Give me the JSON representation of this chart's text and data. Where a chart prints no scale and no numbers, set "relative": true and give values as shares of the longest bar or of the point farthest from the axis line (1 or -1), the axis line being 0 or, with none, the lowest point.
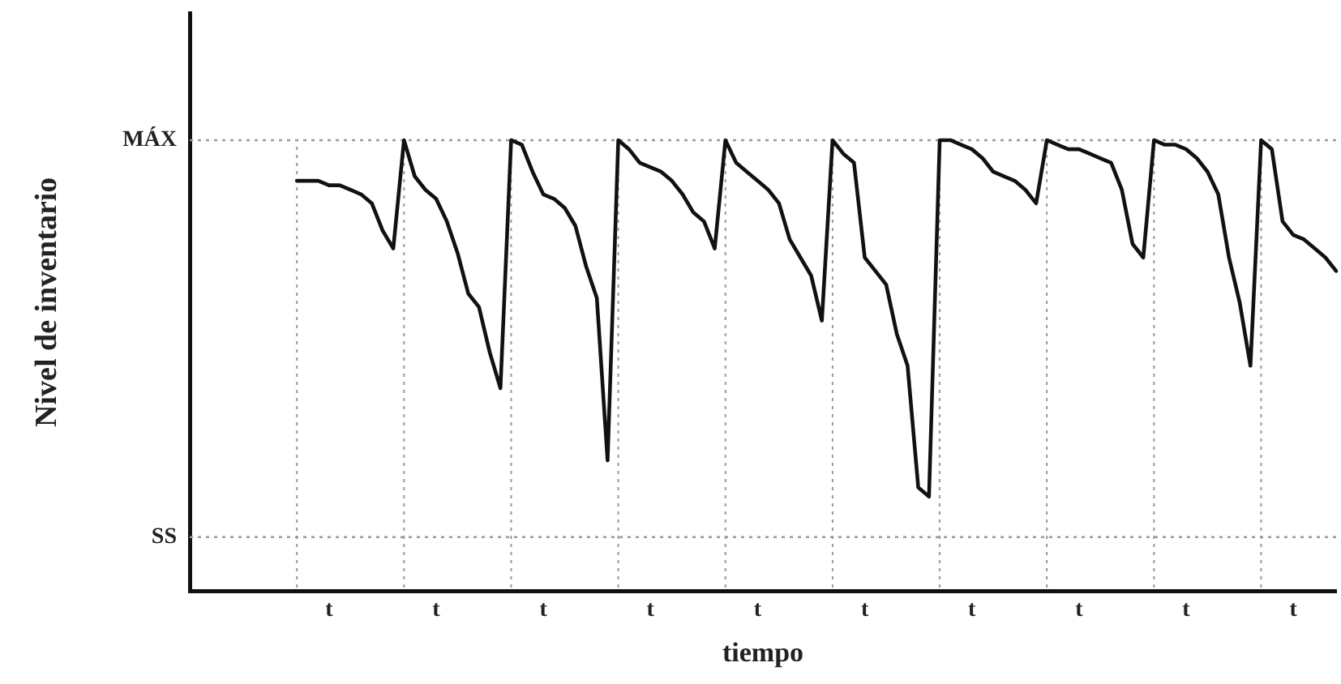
{
  "chart_data": {
    "type": "line",
    "relative": true,
    "xlabel": "tiempo",
    "ylabel": "Nivel de inventario",
    "legend": false,
    "grid": "x",
    "marker": "none",
    "line_style": "solid",
    "categories": [
      null,
      null,
      null,
      null,
      null,
      null,
      null,
      null,
      null,
      null,
      null,
      null,
      null,
      "t",
      null,
      null,
      null,
      null,
      null,
      null,
      null,
      null,
      null,
      "t",
      null,
      null,
      null,
      null,
      null,
      null,
      null,
      null,
      null,
      "t",
      null,
      null,
      null,
      null,
      null,
      null,
      null,
      null,
      null,
      "t",
      null,
      null,
      null,
      null,
      null,
      null,
      null,
      null,
      null,
      "t",
      null,
      null,
      null,
      null,
      null,
      null,
      null,
      null,
      null,
      "t",
      null,
      null,
      null,
      null,
      null,
      null,
      null,
      null,
      null,
      "t",
      null,
      null,
      null,
      null,
      null,
      null,
      null,
      null,
      null,
      "t",
      null,
      null,
      null,
      null,
      null,
      null,
      null,
      null,
      null,
      "t",
      null,
      null,
      null,
      null,
      null,
      null,
      null,
      null,
      null,
      "t",
      null,
      null,
      null,
      null
    ],
    "series": [
      {
        "color": "#111111",
        "values": [
          null,
          null,
          null,
          null,
          null,
          null,
          null,
          null,
          null,
          null,
          0.91,
          0.91,
          0.91,
          0.9,
          0.9,
          0.89,
          0.88,
          0.86,
          0.8,
          0.76,
          1.0,
          0.92,
          0.89,
          0.87,
          0.82,
          0.75,
          0.66,
          0.63,
          0.53,
          0.45,
          1.0,
          0.99,
          0.93,
          0.88,
          0.87,
          0.85,
          0.81,
          0.72,
          0.65,
          0.29,
          1.0,
          0.98,
          0.95,
          0.94,
          0.93,
          0.91,
          0.88,
          0.84,
          0.82,
          0.76,
          1.0,
          0.95,
          0.93,
          0.91,
          0.89,
          0.86,
          0.78,
          0.74,
          0.7,
          0.6,
          1.0,
          0.97,
          0.95,
          0.74,
          0.71,
          0.68,
          0.57,
          0.5,
          0.23,
          0.21,
          1.0,
          1.0,
          0.99,
          0.98,
          0.96,
          0.93,
          0.92,
          0.91,
          0.89,
          0.86,
          1.0,
          0.99,
          0.98,
          0.98,
          0.97,
          0.96,
          0.95,
          0.89,
          0.77,
          0.74,
          1.0,
          0.99,
          0.99,
          0.98,
          0.96,
          0.93,
          0.88,
          0.74,
          0.64,
          0.5,
          1.0,
          0.98,
          0.82,
          0.79,
          0.78,
          0.76,
          0.74,
          0.71
        ]
      }
    ],
    "ref_lines": [
      {
        "axis": "y",
        "value": 1.0,
        "label": "MÁX",
        "color": "#999999",
        "line_style": "dotted"
      },
      {
        "axis": "y",
        "value": 0.12,
        "label": "SS",
        "color": "#999999",
        "line_style": "dotted"
      }
    ]
  }
}
